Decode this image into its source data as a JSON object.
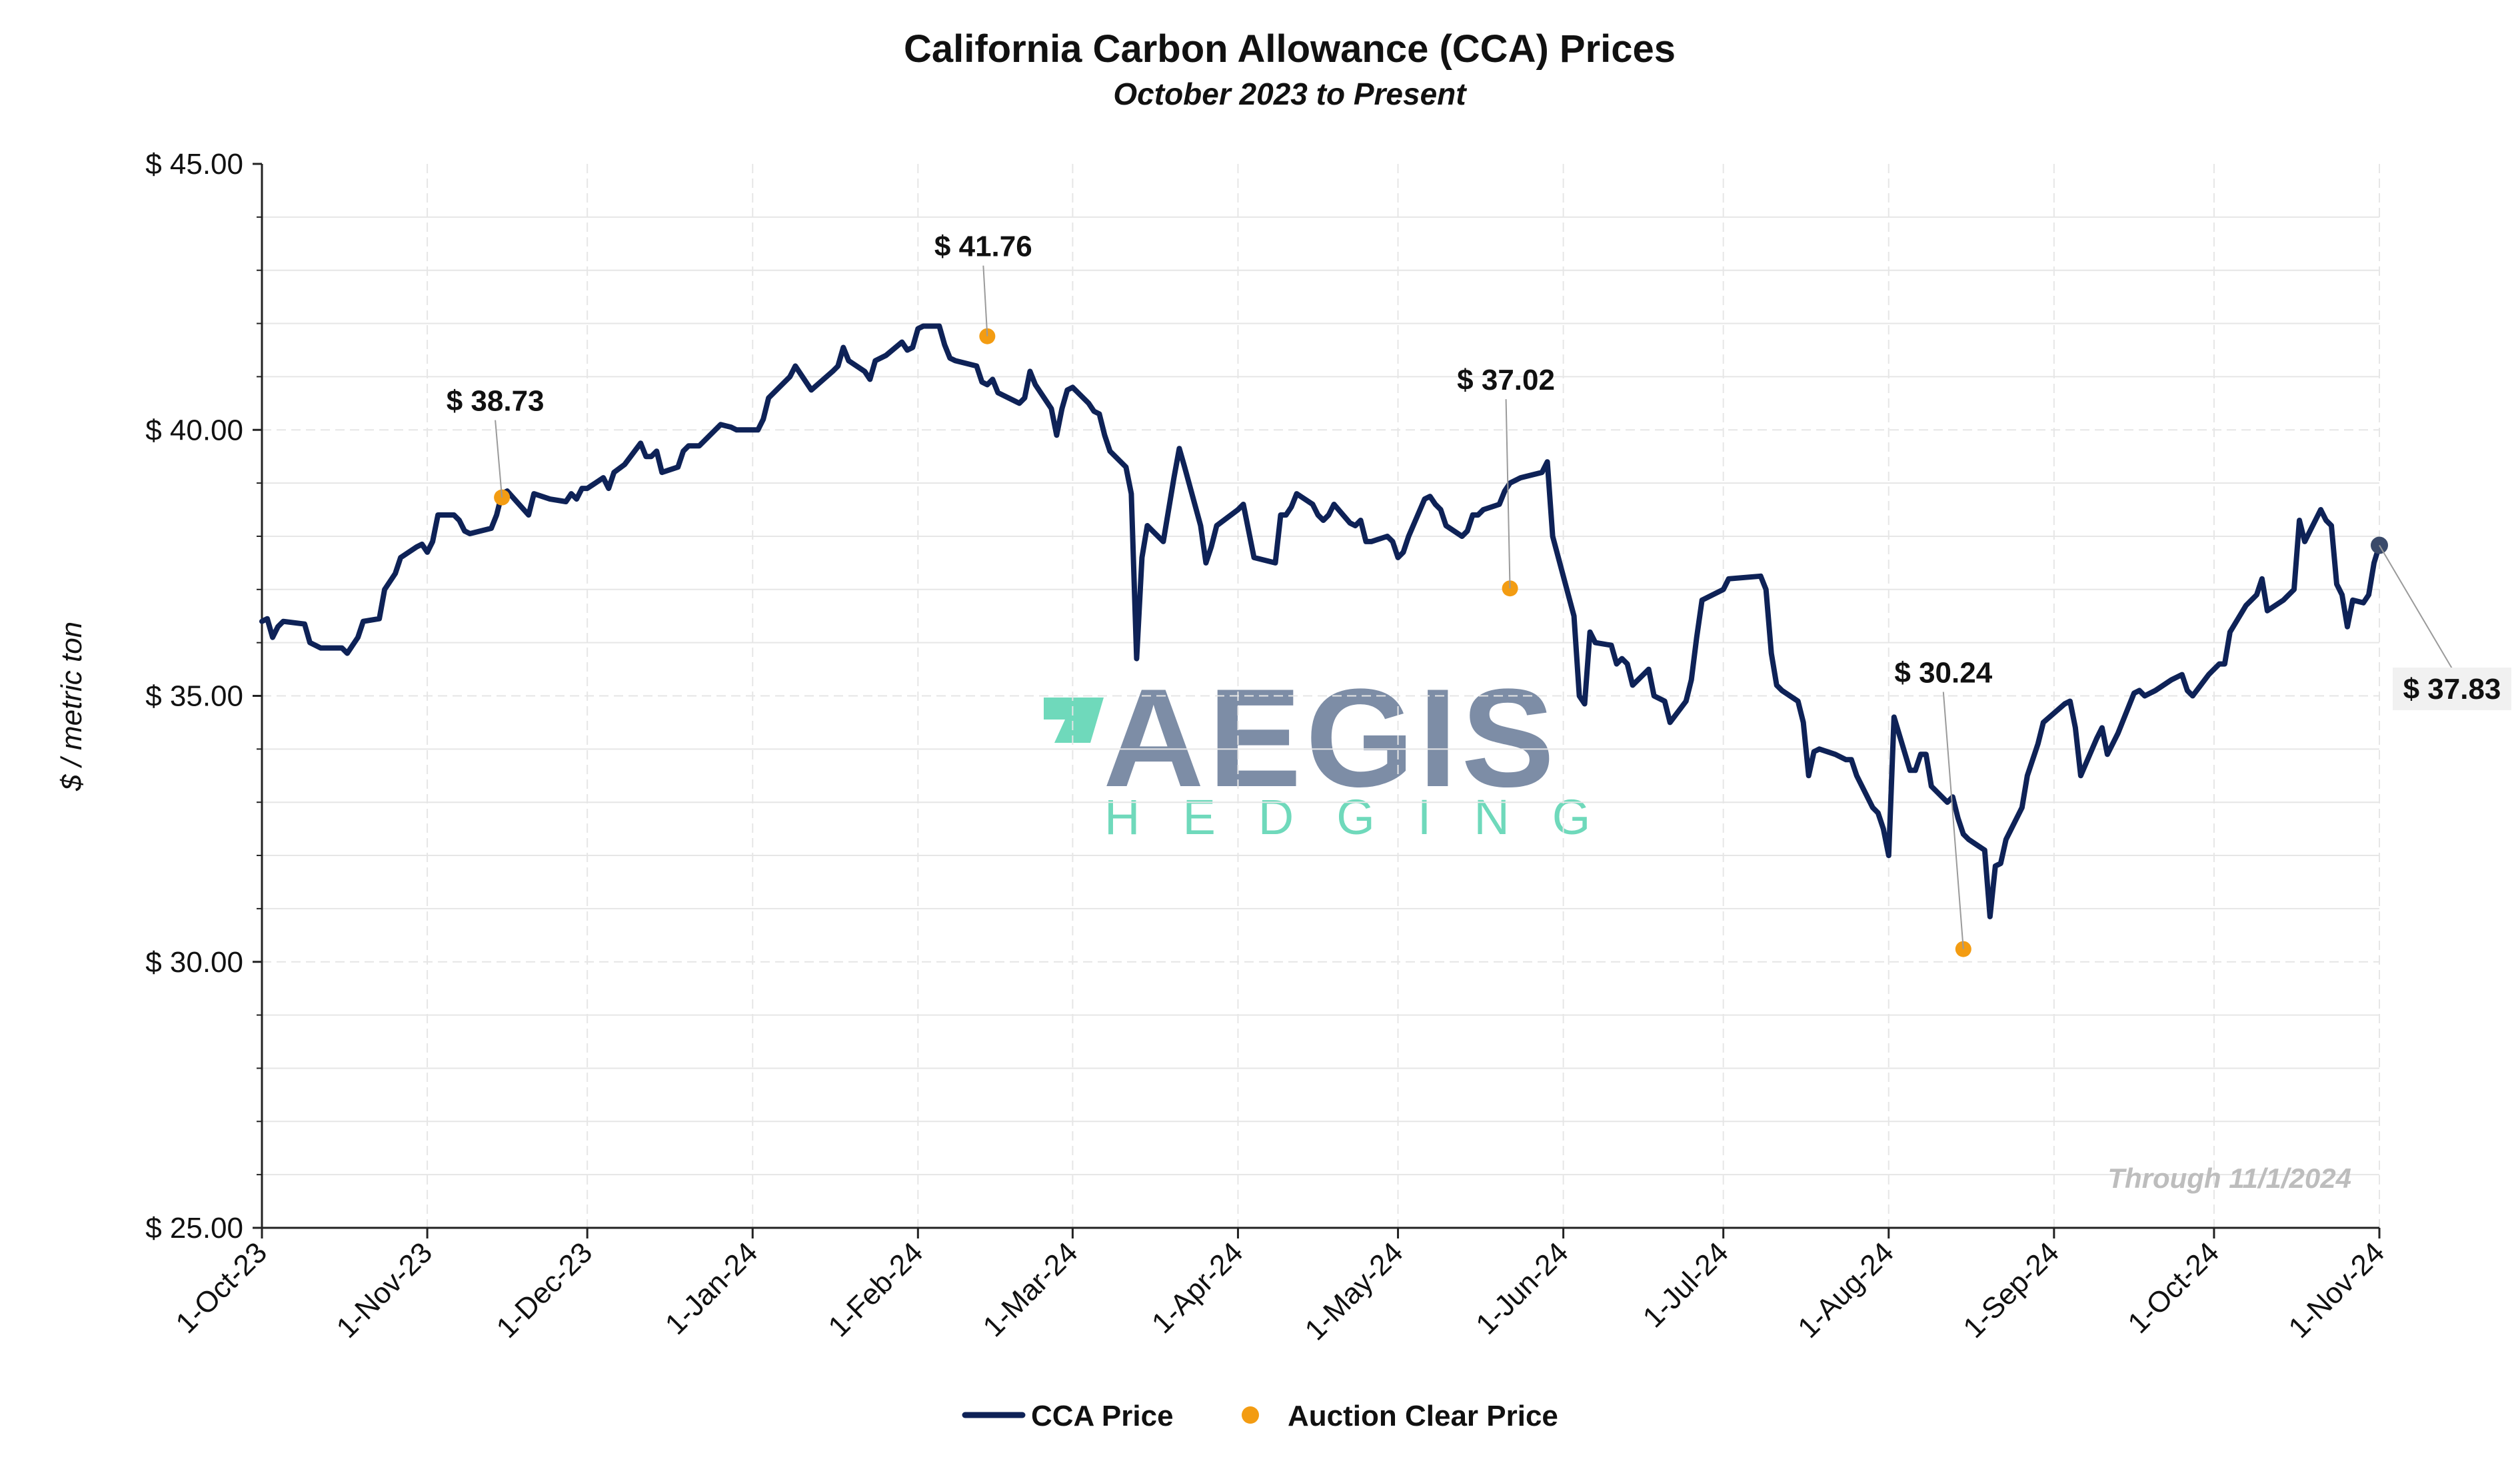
{
  "title": "California Carbon Allowance (CCA) Prices",
  "subtitle": "October 2023 to Present",
  "note": "Through 11/1/2024",
  "watermark": {
    "line1": "AEGIS",
    "line2": "HEDGING",
    "color_dark": "#7d8da6",
    "color_accent": "#6fd9bb"
  },
  "legend": [
    {
      "label": "CCA Price",
      "color": "#0e2257",
      "kind": "line"
    },
    {
      "label": "Auction Clear Price",
      "color": "#f39c12",
      "kind": "dot"
    }
  ],
  "chart_data": {
    "type": "line",
    "title": "California Carbon Allowance (CCA) Prices",
    "subtitle": "October 2023 to Present",
    "ylabel": "$ / metric ton",
    "xlabel": "",
    "ylim": [
      25,
      45
    ],
    "xlim": [
      "2023-10-01",
      "2024-11-01"
    ],
    "grid": true,
    "legend_position": "bottom",
    "yticks": [
      25,
      30,
      35,
      40,
      45
    ],
    "ytick_labels": [
      "$ 25.00",
      "$ 30.00",
      "$ 35.00",
      "$ 40.00",
      "$ 45.00"
    ],
    "xticks": [
      "2023-10-01",
      "2023-11-01",
      "2023-12-01",
      "2024-01-01",
      "2024-02-01",
      "2024-03-01",
      "2024-04-01",
      "2024-05-01",
      "2024-06-01",
      "2024-07-01",
      "2024-08-01",
      "2024-09-01",
      "2024-10-01",
      "2024-11-01"
    ],
    "xtick_labels": [
      "1-Oct-23",
      "1-Nov-23",
      "1-Dec-23",
      "1-Jan-24",
      "1-Feb-24",
      "1-Mar-24",
      "1-Apr-24",
      "1-May-24",
      "1-Jun-24",
      "1-Jul-24",
      "1-Aug-24",
      "1-Sep-24",
      "1-Oct-24",
      "1-Nov-24"
    ],
    "series": [
      {
        "name": "CCA Price",
        "color": "#0e2257",
        "points": [
          [
            "2023-10-01",
            36.4
          ],
          [
            "2023-10-02",
            36.45
          ],
          [
            "2023-10-03",
            36.1
          ],
          [
            "2023-10-04",
            36.3
          ],
          [
            "2023-10-05",
            36.4
          ],
          [
            "2023-10-09",
            36.35
          ],
          [
            "2023-10-10",
            36.0
          ],
          [
            "2023-10-12",
            35.9
          ],
          [
            "2023-10-16",
            35.9
          ],
          [
            "2023-10-17",
            35.8
          ],
          [
            "2023-10-19",
            36.1
          ],
          [
            "2023-10-20",
            36.4
          ],
          [
            "2023-10-23",
            36.45
          ],
          [
            "2023-10-24",
            37.0
          ],
          [
            "2023-10-26",
            37.3
          ],
          [
            "2023-10-27",
            37.6
          ],
          [
            "2023-10-30",
            37.8
          ],
          [
            "2023-10-31",
            37.85
          ],
          [
            "2023-11-01",
            37.7
          ],
          [
            "2023-11-02",
            37.9
          ],
          [
            "2023-11-03",
            38.4
          ],
          [
            "2023-11-06",
            38.4
          ],
          [
            "2023-11-07",
            38.3
          ],
          [
            "2023-11-08",
            38.1
          ],
          [
            "2023-11-09",
            38.05
          ],
          [
            "2023-11-13",
            38.15
          ],
          [
            "2023-11-14",
            38.4
          ],
          [
            "2023-11-15",
            38.8
          ],
          [
            "2023-11-16",
            38.85
          ],
          [
            "2023-11-20",
            38.4
          ],
          [
            "2023-11-21",
            38.8
          ],
          [
            "2023-11-24",
            38.7
          ],
          [
            "2023-11-27",
            38.65
          ],
          [
            "2023-11-28",
            38.8
          ],
          [
            "2023-11-29",
            38.7
          ],
          [
            "2023-11-30",
            38.9
          ],
          [
            "2023-12-01",
            38.9
          ],
          [
            "2023-12-04",
            39.1
          ],
          [
            "2023-12-05",
            38.9
          ],
          [
            "2023-12-06",
            39.2
          ],
          [
            "2023-12-08",
            39.35
          ],
          [
            "2023-12-11",
            39.75
          ],
          [
            "2023-12-12",
            39.5
          ],
          [
            "2023-12-13",
            39.5
          ],
          [
            "2023-12-14",
            39.6
          ],
          [
            "2023-12-15",
            39.2
          ],
          [
            "2023-12-18",
            39.3
          ],
          [
            "2023-12-19",
            39.6
          ],
          [
            "2023-12-20",
            39.7
          ],
          [
            "2023-12-22",
            39.7
          ],
          [
            "2023-12-26",
            40.1
          ],
          [
            "2023-12-28",
            40.05
          ],
          [
            "2023-12-29",
            40.0
          ],
          [
            "2024-01-02",
            40.0
          ],
          [
            "2024-01-03",
            40.2
          ],
          [
            "2024-01-04",
            40.6
          ],
          [
            "2024-01-08",
            41.0
          ],
          [
            "2024-01-09",
            41.2
          ],
          [
            "2024-01-11",
            40.9
          ],
          [
            "2024-01-12",
            40.75
          ],
          [
            "2024-01-16",
            41.1
          ],
          [
            "2024-01-17",
            41.2
          ],
          [
            "2024-01-18",
            41.55
          ],
          [
            "2024-01-19",
            41.3
          ],
          [
            "2024-01-22",
            41.1
          ],
          [
            "2024-01-23",
            40.95
          ],
          [
            "2024-01-24",
            41.3
          ],
          [
            "2024-01-26",
            41.4
          ],
          [
            "2024-01-29",
            41.65
          ],
          [
            "2024-01-30",
            41.5
          ],
          [
            "2024-01-31",
            41.55
          ],
          [
            "2024-02-01",
            41.9
          ],
          [
            "2024-02-02",
            41.95
          ],
          [
            "2024-02-05",
            41.95
          ],
          [
            "2024-02-06",
            41.6
          ],
          [
            "2024-02-07",
            41.35
          ],
          [
            "2024-02-08",
            41.3
          ],
          [
            "2024-02-12",
            41.2
          ],
          [
            "2024-02-13",
            40.9
          ],
          [
            "2024-02-14",
            40.85
          ],
          [
            "2024-02-15",
            40.95
          ],
          [
            "2024-02-16",
            40.7
          ],
          [
            "2024-02-20",
            40.5
          ],
          [
            "2024-02-21",
            40.6
          ],
          [
            "2024-02-22",
            41.1
          ],
          [
            "2024-02-23",
            40.85
          ],
          [
            "2024-02-26",
            40.4
          ],
          [
            "2024-02-27",
            39.9
          ],
          [
            "2024-02-28",
            40.4
          ],
          [
            "2024-02-29",
            40.75
          ],
          [
            "2024-03-01",
            40.8
          ],
          [
            "2024-03-04",
            40.5
          ],
          [
            "2024-03-05",
            40.35
          ],
          [
            "2024-03-06",
            40.3
          ],
          [
            "2024-03-07",
            39.9
          ],
          [
            "2024-03-08",
            39.6
          ],
          [
            "2024-03-11",
            39.3
          ],
          [
            "2024-03-12",
            38.8
          ],
          [
            "2024-03-13",
            35.7
          ],
          [
            "2024-03-14",
            37.6
          ],
          [
            "2024-03-15",
            38.2
          ],
          [
            "2024-03-18",
            37.9
          ],
          [
            "2024-03-19",
            38.5
          ],
          [
            "2024-03-20",
            39.1
          ],
          [
            "2024-03-21",
            39.65
          ],
          [
            "2024-03-22",
            39.3
          ],
          [
            "2024-03-25",
            38.2
          ],
          [
            "2024-03-26",
            37.5
          ],
          [
            "2024-03-27",
            37.8
          ],
          [
            "2024-03-28",
            38.2
          ],
          [
            "2024-04-01",
            38.5
          ],
          [
            "2024-04-02",
            38.6
          ],
          [
            "2024-04-03",
            38.1
          ],
          [
            "2024-04-04",
            37.6
          ],
          [
            "2024-04-08",
            37.5
          ],
          [
            "2024-04-09",
            38.4
          ],
          [
            "2024-04-10",
            38.4
          ],
          [
            "2024-04-11",
            38.55
          ],
          [
            "2024-04-12",
            38.8
          ],
          [
            "2024-04-15",
            38.6
          ],
          [
            "2024-04-16",
            38.4
          ],
          [
            "2024-04-17",
            38.3
          ],
          [
            "2024-04-18",
            38.4
          ],
          [
            "2024-04-19",
            38.6
          ],
          [
            "2024-04-22",
            38.25
          ],
          [
            "2024-04-23",
            38.2
          ],
          [
            "2024-04-24",
            38.3
          ],
          [
            "2024-04-25",
            37.9
          ],
          [
            "2024-04-26",
            37.9
          ],
          [
            "2024-04-29",
            38.0
          ],
          [
            "2024-04-30",
            37.9
          ],
          [
            "2024-05-01",
            37.6
          ],
          [
            "2024-05-02",
            37.7
          ],
          [
            "2024-05-03",
            38.0
          ],
          [
            "2024-05-06",
            38.7
          ],
          [
            "2024-05-07",
            38.75
          ],
          [
            "2024-05-08",
            38.6
          ],
          [
            "2024-05-09",
            38.5
          ],
          [
            "2024-05-10",
            38.2
          ],
          [
            "2024-05-13",
            38.0
          ],
          [
            "2024-05-14",
            38.1
          ],
          [
            "2024-05-15",
            38.4
          ],
          [
            "2024-05-16",
            38.4
          ],
          [
            "2024-05-17",
            38.5
          ],
          [
            "2024-05-20",
            38.6
          ],
          [
            "2024-05-21",
            38.85
          ],
          [
            "2024-05-22",
            39.0
          ],
          [
            "2024-05-24",
            39.1
          ],
          [
            "2024-05-28",
            39.2
          ],
          [
            "2024-05-29",
            39.4
          ],
          [
            "2024-05-30",
            38.0
          ],
          [
            "2024-06-03",
            36.5
          ],
          [
            "2024-06-04",
            35.0
          ],
          [
            "2024-06-05",
            34.85
          ],
          [
            "2024-06-06",
            36.2
          ],
          [
            "2024-06-07",
            36.0
          ],
          [
            "2024-06-10",
            35.95
          ],
          [
            "2024-06-11",
            35.6
          ],
          [
            "2024-06-12",
            35.7
          ],
          [
            "2024-06-13",
            35.6
          ],
          [
            "2024-06-14",
            35.2
          ],
          [
            "2024-06-17",
            35.5
          ],
          [
            "2024-06-18",
            35.0
          ],
          [
            "2024-06-20",
            34.9
          ],
          [
            "2024-06-21",
            34.5
          ],
          [
            "2024-06-24",
            34.9
          ],
          [
            "2024-06-25",
            35.3
          ],
          [
            "2024-06-26",
            36.1
          ],
          [
            "2024-06-27",
            36.8
          ],
          [
            "2024-07-01",
            37.0
          ],
          [
            "2024-07-02",
            37.2
          ],
          [
            "2024-07-08",
            37.25
          ],
          [
            "2024-07-09",
            37.0
          ],
          [
            "2024-07-10",
            35.8
          ],
          [
            "2024-07-11",
            35.2
          ],
          [
            "2024-07-12",
            35.1
          ],
          [
            "2024-07-15",
            34.9
          ],
          [
            "2024-07-16",
            34.5
          ],
          [
            "2024-07-17",
            33.5
          ],
          [
            "2024-07-18",
            33.95
          ],
          [
            "2024-07-19",
            34.0
          ],
          [
            "2024-07-22",
            33.9
          ],
          [
            "2024-07-23",
            33.85
          ],
          [
            "2024-07-24",
            33.8
          ],
          [
            "2024-07-25",
            33.8
          ],
          [
            "2024-07-26",
            33.5
          ],
          [
            "2024-07-29",
            32.9
          ],
          [
            "2024-07-30",
            32.8
          ],
          [
            "2024-07-31",
            32.5
          ],
          [
            "2024-08-01",
            32.0
          ],
          [
            "2024-08-02",
            34.6
          ],
          [
            "2024-08-05",
            33.6
          ],
          [
            "2024-08-06",
            33.6
          ],
          [
            "2024-08-07",
            33.9
          ],
          [
            "2024-08-08",
            33.9
          ],
          [
            "2024-08-09",
            33.3
          ],
          [
            "2024-08-12",
            33.0
          ],
          [
            "2024-08-13",
            33.1
          ],
          [
            "2024-08-14",
            32.7
          ],
          [
            "2024-08-15",
            32.4
          ],
          [
            "2024-08-16",
            32.3
          ],
          [
            "2024-08-19",
            32.1
          ],
          [
            "2024-08-20",
            30.85
          ],
          [
            "2024-08-21",
            31.8
          ],
          [
            "2024-08-22",
            31.85
          ],
          [
            "2024-08-23",
            32.3
          ],
          [
            "2024-08-26",
            32.9
          ],
          [
            "2024-08-27",
            33.5
          ],
          [
            "2024-08-28",
            33.8
          ],
          [
            "2024-08-29",
            34.1
          ],
          [
            "2024-08-30",
            34.5
          ],
          [
            "2024-09-03",
            34.85
          ],
          [
            "2024-09-04",
            34.9
          ],
          [
            "2024-09-05",
            34.4
          ],
          [
            "2024-09-06",
            33.5
          ],
          [
            "2024-09-09",
            34.2
          ],
          [
            "2024-09-10",
            34.4
          ],
          [
            "2024-09-11",
            33.9
          ],
          [
            "2024-09-12",
            34.1
          ],
          [
            "2024-09-13",
            34.3
          ],
          [
            "2024-09-16",
            35.05
          ],
          [
            "2024-09-17",
            35.1
          ],
          [
            "2024-09-18",
            35.0
          ],
          [
            "2024-09-20",
            35.1
          ],
          [
            "2024-09-23",
            35.3
          ],
          [
            "2024-09-25",
            35.4
          ],
          [
            "2024-09-26",
            35.1
          ],
          [
            "2024-09-27",
            35.0
          ],
          [
            "2024-09-30",
            35.4
          ],
          [
            "2024-10-01",
            35.5
          ],
          [
            "2024-10-02",
            35.6
          ],
          [
            "2024-10-03",
            35.6
          ],
          [
            "2024-10-04",
            36.2
          ],
          [
            "2024-10-07",
            36.7
          ],
          [
            "2024-10-08",
            36.8
          ],
          [
            "2024-10-09",
            36.9
          ],
          [
            "2024-10-10",
            37.2
          ],
          [
            "2024-10-11",
            36.6
          ],
          [
            "2024-10-14",
            36.8
          ],
          [
            "2024-10-15",
            36.9
          ],
          [
            "2024-10-16",
            37.0
          ],
          [
            "2024-10-17",
            38.3
          ],
          [
            "2024-10-18",
            37.9
          ],
          [
            "2024-10-21",
            38.5
          ],
          [
            "2024-10-22",
            38.3
          ],
          [
            "2024-10-23",
            38.2
          ],
          [
            "2024-10-24",
            37.1
          ],
          [
            "2024-10-25",
            36.9
          ],
          [
            "2024-10-26",
            36.3
          ],
          [
            "2024-10-27",
            36.8
          ],
          [
            "2024-10-29",
            36.75
          ],
          [
            "2024-10-30",
            36.9
          ],
          [
            "2024-10-31",
            37.5
          ],
          [
            "2024-11-01",
            37.83
          ]
        ]
      },
      {
        "name": "Auction Clear Price",
        "color": "#f39c12",
        "type": "scatter",
        "points": [
          {
            "x": "2023-11-15",
            "y": 38.73,
            "label": "$ 38.73"
          },
          {
            "x": "2024-02-14",
            "y": 41.76,
            "label": "$ 41.76"
          },
          {
            "x": "2024-05-22",
            "y": 37.02,
            "label": "$ 37.02"
          },
          {
            "x": "2024-08-15",
            "y": 30.24,
            "label": "$ 30.24"
          }
        ]
      }
    ],
    "last_value_label": "$ 37.83"
  }
}
